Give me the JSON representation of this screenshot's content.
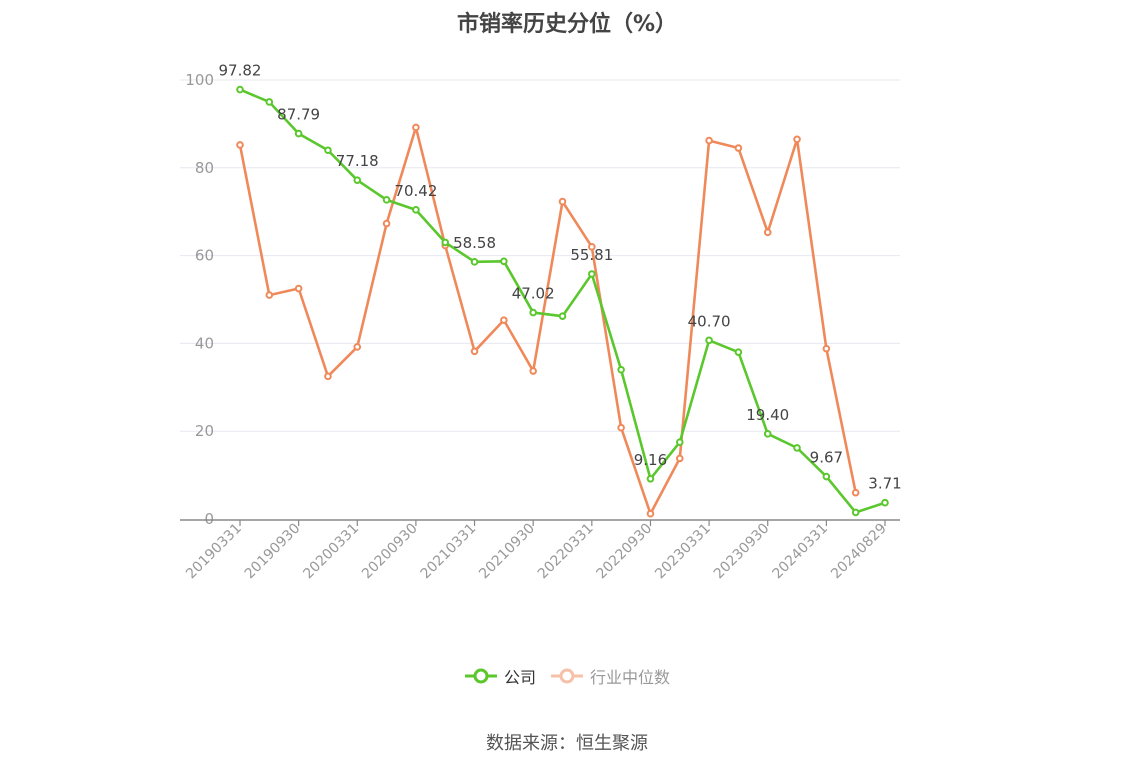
{
  "chart_data": {
    "type": "line",
    "title": "市销率历史分位（%）",
    "source": "数据来源：恒生聚源",
    "xlabel": "",
    "ylabel": "",
    "ylim": [
      0,
      100
    ],
    "yticks": [
      0,
      20,
      40,
      60,
      80,
      100
    ],
    "x": [
      "20190331",
      "20190630",
      "20190930",
      "20191231",
      "20200331",
      "20200630",
      "20200930",
      "20201231",
      "20210331",
      "20210630",
      "20210930",
      "20211231",
      "20220331",
      "20220630",
      "20220930",
      "20221231",
      "20230331",
      "20230630",
      "20230930",
      "20231231",
      "20240331",
      "20240630",
      "20240829"
    ],
    "xtick_labels": [
      "20190331",
      "20190930",
      "20200331",
      "20200930",
      "20210331",
      "20210930",
      "20220331",
      "20220930",
      "20230331",
      "20230930",
      "20240331",
      "20240829"
    ],
    "xtick_indices": [
      0,
      2,
      4,
      6,
      8,
      10,
      12,
      14,
      16,
      18,
      20,
      22
    ],
    "grid": true,
    "legend_position": "bottom-center",
    "series": [
      {
        "name": "公司",
        "color": "#5ac72d",
        "values": [
          97.82,
          95.0,
          87.79,
          84.0,
          77.18,
          72.7,
          70.42,
          63.0,
          58.58,
          58.7,
          47.02,
          46.2,
          55.81,
          34.0,
          9.16,
          17.5,
          40.7,
          38.0,
          19.4,
          16.2,
          9.67,
          1.5,
          3.71
        ],
        "labels": [
          "97.82",
          "",
          "87.79",
          "",
          "77.18",
          "",
          "70.42",
          "",
          "58.58",
          "",
          "47.02",
          "",
          "55.81",
          "",
          "9.16",
          "",
          "40.70",
          "",
          "19.40",
          "",
          "9.67",
          "",
          "3.71"
        ]
      },
      {
        "name": "行业中位数",
        "color": "#f0895a",
        "values": [
          85.2,
          51.0,
          52.5,
          32.5,
          39.2,
          67.3,
          89.2,
          62.3,
          38.2,
          45.3,
          33.7,
          72.3,
          62.0,
          20.8,
          1.2,
          13.8,
          86.2,
          84.5,
          65.3,
          86.5,
          38.8,
          6.0,
          null
        ]
      }
    ]
  }
}
